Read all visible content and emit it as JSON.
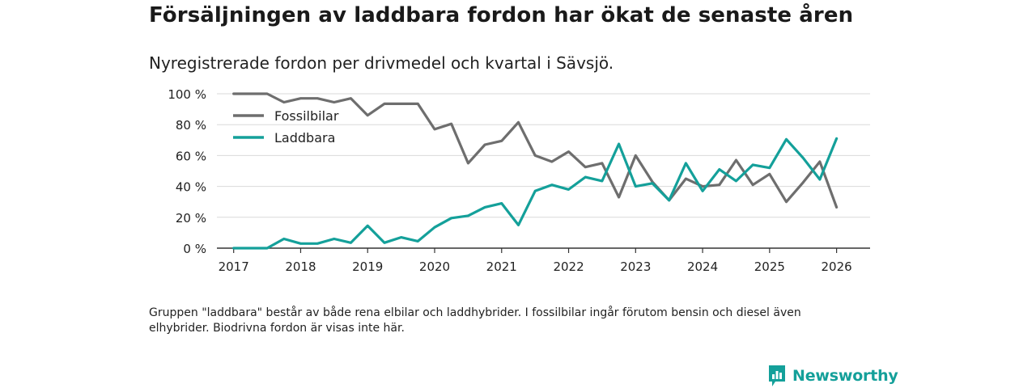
{
  "title": "Försäljningen av laddbara fordon har ökat de senaste åren",
  "subtitle": "Nyregistrerade fordon per drivmedel och kvartal i Sävsjö.",
  "note": "Gruppen \"laddbara\" består av både rena elbilar och laddhybrider. I fossilbilar ingår förutom bensin och diesel även elhybrider. Biodrivna fordon är visas inte här.",
  "brand": {
    "name": "Newsworthy",
    "color": "#14a09a"
  },
  "chart_data": {
    "type": "line",
    "title": "Försäljningen av laddbara fordon har ökat de senaste åren",
    "xlabel": "",
    "ylabel": "",
    "ylim": [
      0,
      100
    ],
    "xlim": [
      2016.75,
      2026.5
    ],
    "yticks": [
      0,
      20,
      40,
      60,
      80,
      100
    ],
    "ytick_labels": [
      "0 %",
      "20 %",
      "40 %",
      "60 %",
      "80 %",
      "100 %"
    ],
    "xticks": [
      2017,
      2018,
      2019,
      2020,
      2021,
      2022,
      2023,
      2024,
      2025,
      2026
    ],
    "xtick_labels": [
      "2017",
      "2018",
      "2019",
      "2020",
      "2021",
      "2022",
      "2023",
      "2024",
      "2025",
      "2026"
    ],
    "grid": true,
    "legend": "top-left",
    "x": [
      2017,
      2017.25,
      2017.5,
      2017.75,
      2018,
      2018.25,
      2018.5,
      2018.75,
      2019,
      2019.25,
      2019.5,
      2019.75,
      2020,
      2020.25,
      2020.5,
      2020.75,
      2021,
      2021.25,
      2021.5,
      2021.75,
      2022,
      2022.25,
      2022.5,
      2022.75,
      2023,
      2023.25,
      2023.5,
      2023.75,
      2024,
      2024.25,
      2024.5,
      2024.75,
      2025,
      2025.25,
      2025.5,
      2025.75,
      2026
    ],
    "series": [
      {
        "name": "Fossilbilar",
        "color": "#6e6e6e",
        "values": [
          100,
          100,
          100,
          94.5,
          97,
          97,
          94.5,
          97,
          86,
          93.5,
          93.5,
          93.5,
          77,
          80.5,
          55,
          67,
          69.5,
          81.5,
          60,
          56,
          62.5,
          52.5,
          55,
          33,
          60,
          43,
          31,
          45,
          40,
          41,
          57,
          41,
          48,
          30,
          42.5,
          56,
          26.5
        ]
      },
      {
        "name": "Laddbara",
        "color": "#14a09a",
        "values": [
          0,
          0,
          0,
          6,
          3,
          3,
          6,
          3.5,
          14.5,
          3.5,
          7,
          4.5,
          13.5,
          19.5,
          21,
          26.5,
          29,
          15,
          37,
          41,
          38,
          46,
          43.5,
          67.5,
          40,
          42,
          31,
          55,
          37,
          51,
          43.5,
          54,
          52,
          70.5,
          58.5,
          44.5,
          71
        ]
      }
    ]
  }
}
